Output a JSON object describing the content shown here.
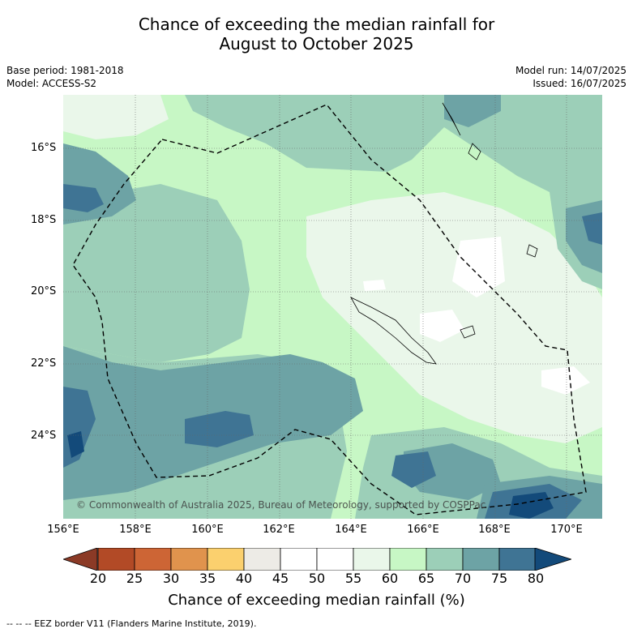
{
  "title": [
    "Chance of exceeding the median rainfall for",
    "August to October 2025"
  ],
  "base_period": "Base period: 1981-2018",
  "model": "Model: ACCESS-S2",
  "model_run": "Model run: 14/07/2025",
  "issued": "Issued: 16/07/2025",
  "copyright": "© Commonwealth of Australia 2025, Bureau of Meteorology, supported by COSPPac",
  "lat_labels": [
    "16°S",
    "18°S",
    "20°S",
    "22°S",
    "24°S"
  ],
  "lon_labels": [
    "156°E",
    "158°E",
    "160°E",
    "162°E",
    "164°E",
    "166°E",
    "168°E",
    "170°E"
  ],
  "colorbar": {
    "ticks": [
      "20",
      "25",
      "30",
      "35",
      "40",
      "45",
      "50",
      "55",
      "60",
      "65",
      "70",
      "75",
      "80"
    ],
    "colors": [
      "#8b3a26",
      "#b24a26",
      "#cd6535",
      "#e0934d",
      "#fbd06e",
      "#edebe6",
      "#ffffff",
      "#ffffff",
      "#eaf7ea",
      "#c7f7c5",
      "#9ccfb8",
      "#6da3a5",
      "#3f7494",
      "#134a7a"
    ],
    "label": "Chance of exceeding median rainfall (%)"
  },
  "footer": "--  --  -- EEZ border V11 (Flanders Marine Institute, 2019)."
}
